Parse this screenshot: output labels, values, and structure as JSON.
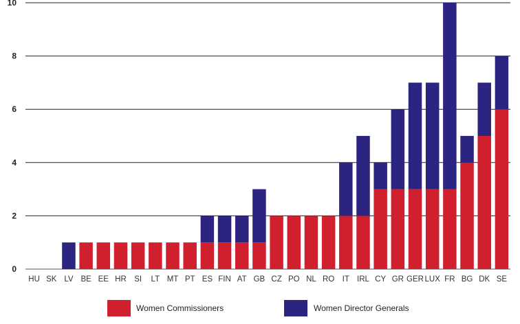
{
  "chart_data": {
    "type": "bar",
    "stacked": true,
    "categories": [
      "HU",
      "SK",
      "LV",
      "BE",
      "EE",
      "HR",
      "SI",
      "LT",
      "MT",
      "PT",
      "ES",
      "FIN",
      "AT",
      "GB",
      "CZ",
      "PO",
      "NL",
      "RO",
      "IT",
      "IRL",
      "CY",
      "GR",
      "GER",
      "LUX",
      "FR",
      "BG",
      "DK",
      "SE"
    ],
    "series": [
      {
        "name": "Women Commissioners",
        "color": "#d0202e",
        "values": [
          0,
          0,
          0,
          1,
          1,
          1,
          1,
          1,
          1,
          1,
          1,
          1,
          1,
          1,
          2,
          2,
          2,
          2,
          2,
          2,
          3,
          3,
          3,
          3,
          3,
          4,
          5,
          6
        ]
      },
      {
        "name": "Women Director Generals",
        "color": "#2b2480",
        "values": [
          0,
          0,
          1,
          0,
          0,
          0,
          0,
          0,
          0,
          0,
          1,
          1,
          1,
          2,
          0,
          0,
          0,
          0,
          2,
          3,
          1,
          3,
          4,
          4,
          7,
          1,
          2,
          2
        ]
      }
    ],
    "yticks": [
      "0",
      "2",
      "4",
      "6",
      "8",
      "10"
    ],
    "ylim": [
      0,
      10
    ],
    "grid": true,
    "legend": "bottom"
  }
}
